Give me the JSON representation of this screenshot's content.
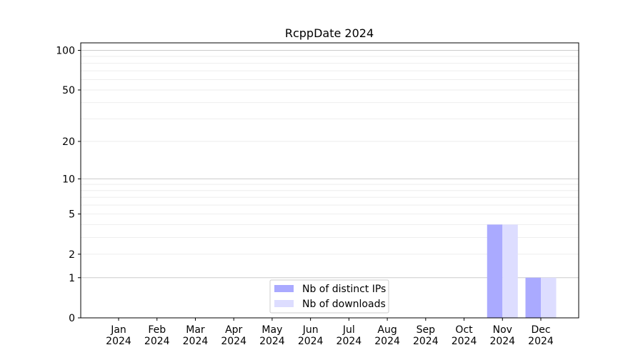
{
  "chart_data": {
    "type": "bar",
    "title": "RcppDate 2024",
    "xlabel": "",
    "ylabel": "",
    "y_scale": "symlog",
    "ylim": [
      0,
      114
    ],
    "yticks": [
      0,
      1,
      2,
      5,
      10,
      20,
      50,
      100
    ],
    "grid": true,
    "legend_placement": "lower center",
    "categories": [
      [
        "Jan",
        "2024"
      ],
      [
        "Feb",
        "2024"
      ],
      [
        "Mar",
        "2024"
      ],
      [
        "Apr",
        "2024"
      ],
      [
        "May",
        "2024"
      ],
      [
        "Jun",
        "2024"
      ],
      [
        "Jul",
        "2024"
      ],
      [
        "Aug",
        "2024"
      ],
      [
        "Sep",
        "2024"
      ],
      [
        "Oct",
        "2024"
      ],
      [
        "Nov",
        "2024"
      ],
      [
        "Dec",
        "2024"
      ]
    ],
    "series": [
      {
        "name": "Nb of distinct IPs",
        "color": "#aaaaff",
        "values": [
          0,
          0,
          0,
          0,
          0,
          0,
          0,
          0,
          0,
          0,
          4,
          1
        ]
      },
      {
        "name": "Nb of downloads",
        "color": "#ddddff",
        "values": [
          0,
          0,
          0,
          0,
          0,
          0,
          0,
          0,
          0,
          0,
          4,
          1
        ]
      }
    ]
  }
}
